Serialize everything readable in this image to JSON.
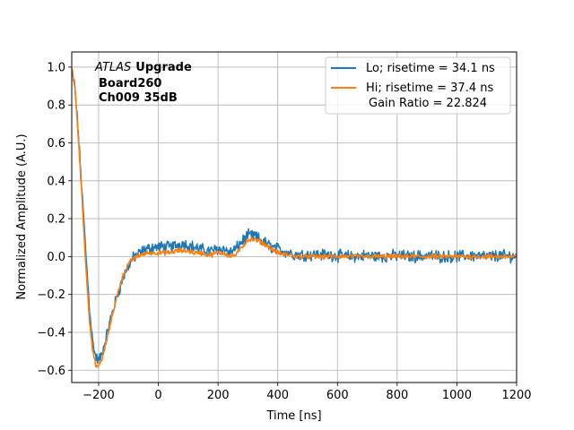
{
  "chart_data": {
    "type": "line",
    "title": "",
    "xlabel": "Time [ns]",
    "ylabel": "Normalized Amplitude (A.U.)",
    "xlim": [
      -290,
      1200
    ],
    "ylim": [
      -0.665,
      1.08
    ],
    "grid": true,
    "legend_position": "top-right",
    "x_ticks": [
      -200,
      0,
      200,
      400,
      600,
      800,
      1000,
      1200
    ],
    "x_tick_labels": [
      "−200",
      "0",
      "200",
      "400",
      "600",
      "800",
      "1000",
      "1200"
    ],
    "y_ticks": [
      -0.6,
      -0.4,
      -0.2,
      0.0,
      0.2,
      0.4,
      0.6,
      0.8,
      1.0
    ],
    "y_tick_labels": [
      "−0.6",
      "−0.4",
      "−0.2",
      "0.0",
      "0.2",
      "0.4",
      "0.6",
      "0.8",
      "1.0"
    ],
    "annotation": {
      "atlas": "ATLAS",
      "upgrade": "Upgrade",
      "board": "Board260",
      "channel": "Ch009 35dB"
    },
    "series": [
      {
        "name": "Lo; risetime = 34.1 ns",
        "color": "#1f77b4",
        "noise": 0.025,
        "x": [
          -290,
          -280,
          -270,
          -260,
          -250,
          -240,
          -230,
          -220,
          -210,
          -200,
          -190,
          -180,
          -170,
          -160,
          -150,
          -140,
          -130,
          -120,
          -110,
          -100,
          -90,
          -80,
          -70,
          -60,
          -50,
          -40,
          -30,
          -20,
          -10,
          0,
          20,
          40,
          60,
          80,
          100,
          120,
          140,
          160,
          180,
          200,
          220,
          240,
          260,
          280,
          300,
          320,
          340,
          360,
          380,
          400,
          420,
          440,
          460,
          480,
          500,
          550,
          600,
          650,
          700,
          750,
          800,
          850,
          900,
          950,
          1000,
          1050,
          1100,
          1150,
          1200
        ],
        "y": [
          0.98,
          0.9,
          0.7,
          0.45,
          0.2,
          -0.05,
          -0.28,
          -0.45,
          -0.53,
          -0.55,
          -0.52,
          -0.46,
          -0.4,
          -0.33,
          -0.27,
          -0.22,
          -0.17,
          -0.12,
          -0.08,
          -0.05,
          -0.02,
          0.0,
          0.01,
          0.02,
          0.03,
          0.04,
          0.04,
          0.05,
          0.05,
          0.05,
          0.05,
          0.05,
          0.06,
          0.07,
          0.06,
          0.05,
          0.04,
          0.03,
          0.03,
          0.04,
          0.04,
          0.02,
          0.04,
          0.08,
          0.11,
          0.11,
          0.09,
          0.07,
          0.05,
          0.04,
          0.03,
          0.02,
          0.01,
          0.01,
          0.01,
          0.01,
          0.005,
          0.0,
          0.005,
          0.0,
          0.005,
          0.0,
          0.005,
          0.0,
          0.0,
          0.005,
          0.0,
          0.005,
          0.0
        ]
      },
      {
        "name": "Hi; risetime = 37.4 ns",
        "name_line2": "Gain Ratio = 22.824",
        "color": "#ff7f0e",
        "noise": 0.01,
        "x": [
          -290,
          -280,
          -270,
          -260,
          -250,
          -240,
          -230,
          -220,
          -210,
          -200,
          -190,
          -180,
          -170,
          -160,
          -150,
          -140,
          -130,
          -120,
          -110,
          -100,
          -90,
          -80,
          -70,
          -60,
          -50,
          -40,
          -30,
          -20,
          -10,
          0,
          20,
          40,
          60,
          80,
          100,
          120,
          140,
          160,
          180,
          200,
          220,
          240,
          260,
          280,
          300,
          320,
          340,
          360,
          380,
          400,
          420,
          440,
          460,
          480,
          500,
          550,
          600,
          650,
          700,
          750,
          800,
          850,
          900,
          950,
          1000,
          1050,
          1100,
          1150,
          1200
        ],
        "y": [
          0.99,
          0.9,
          0.68,
          0.42,
          0.15,
          -0.12,
          -0.35,
          -0.5,
          -0.57,
          -0.58,
          -0.55,
          -0.49,
          -0.42,
          -0.35,
          -0.28,
          -0.22,
          -0.16,
          -0.11,
          -0.07,
          -0.04,
          -0.02,
          -0.01,
          0.0,
          0.01,
          0.01,
          0.02,
          0.02,
          0.02,
          0.02,
          0.02,
          0.02,
          0.02,
          0.03,
          0.03,
          0.03,
          0.02,
          0.02,
          0.01,
          0.01,
          0.02,
          0.02,
          0.0,
          0.01,
          0.05,
          0.09,
          0.09,
          0.08,
          0.06,
          0.04,
          0.02,
          0.01,
          0.01,
          0.0,
          0.0,
          0.0,
          0.0,
          0.0,
          0.0,
          0.0,
          0.0,
          0.0,
          0.0,
          0.0,
          0.0,
          0.0,
          0.0,
          0.0,
          0.0,
          0.0
        ]
      }
    ]
  }
}
